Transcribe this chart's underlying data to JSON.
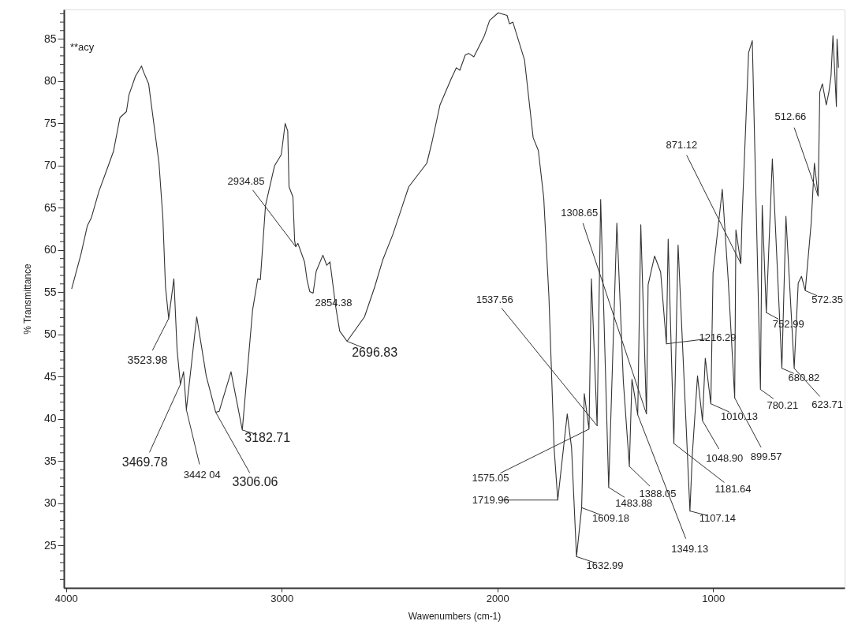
{
  "chart_data": {
    "type": "line",
    "xlabel": "Wawenumbers (cm-1)",
    "ylabel": "% Transmittance",
    "color": "#333333",
    "grid": false,
    "xlim": [
      4010,
      390
    ],
    "xticks": [
      4000,
      3000,
      2000,
      1000
    ],
    "ylim": [
      20,
      88.5
    ],
    "yticks": [
      {
        "value": 21,
        "label": null
      },
      {
        "value": 22,
        "label": null
      },
      {
        "value": 23,
        "label": null
      },
      {
        "value": 24,
        "label": null
      },
      25,
      {
        "value": 26,
        "label": null
      },
      {
        "value": 27,
        "label": null
      },
      {
        "value": 28,
        "label": null
      },
      {
        "value": 29,
        "label": null
      },
      30,
      {
        "value": 31,
        "label": null
      },
      {
        "value": 32,
        "label": null
      },
      {
        "value": 33,
        "label": null
      },
      {
        "value": 34,
        "label": null
      },
      35,
      {
        "value": 36,
        "label": null
      },
      {
        "value": 37,
        "label": null
      },
      {
        "value": 38,
        "label": null
      },
      {
        "value": 39,
        "label": null
      },
      40,
      {
        "value": 41,
        "label": null
      },
      {
        "value": 42,
        "label": null
      },
      {
        "value": 43,
        "label": null
      },
      {
        "value": 44,
        "label": null
      },
      45,
      {
        "value": 46,
        "label": null
      },
      {
        "value": 47,
        "label": null
      },
      {
        "value": 48,
        "label": null
      },
      {
        "value": 49,
        "label": null
      },
      50,
      {
        "value": 51,
        "label": null
      },
      {
        "value": 52,
        "label": null
      },
      {
        "value": 53,
        "label": null
      },
      {
        "value": 54,
        "label": null
      },
      55,
      {
        "value": 56,
        "label": null
      },
      {
        "value": 57,
        "label": null
      },
      {
        "value": 58,
        "label": null
      },
      {
        "value": 59,
        "label": null
      },
      60,
      {
        "value": 61,
        "label": null
      },
      {
        "value": 62,
        "label": null
      },
      {
        "value": 63,
        "label": null
      },
      {
        "value": 64,
        "label": null
      },
      65,
      {
        "value": 66,
        "label": null
      },
      {
        "value": 67,
        "label": null
      },
      {
        "value": 68,
        "label": null
      },
      {
        "value": 69,
        "label": null
      },
      70,
      {
        "value": 71,
        "label": null
      },
      {
        "value": 72,
        "label": null
      },
      {
        "value": 73,
        "label": null
      },
      {
        "value": 74,
        "label": null
      },
      75,
      {
        "value": 76,
        "label": null
      },
      {
        "value": 77,
        "label": null
      },
      {
        "value": 78,
        "label": null
      },
      {
        "value": 79,
        "label": null
      },
      80,
      {
        "value": 81,
        "label": null
      },
      {
        "value": 82,
        "label": null
      },
      {
        "value": 83,
        "label": null
      },
      {
        "value": 84,
        "label": null
      },
      85,
      {
        "value": 86,
        "label": null
      },
      {
        "value": 87,
        "label": null
      },
      {
        "value": 88,
        "label": null
      }
    ],
    "x": [
      3974,
      3931,
      3901,
      3883,
      3847,
      3811,
      3780,
      3750,
      3720,
      3708,
      3678,
      3650,
      3642,
      3617,
      3569,
      3551,
      3539,
      3523.98,
      3500,
      3485,
      3469.78,
      3455,
      3442.04,
      3394,
      3350,
      3306.06,
      3290,
      3235,
      3182.71,
      3135,
      3111,
      3099,
      3075,
      3033,
      3002,
      2984,
      2972,
      2966,
      2948,
      2940,
      2934.85,
      2925,
      2894,
      2882,
      2870,
      2854.38,
      2840,
      2809,
      2791,
      2776,
      2749,
      2731,
      2696.83,
      2616,
      2568,
      2532,
      2484,
      2411,
      2327,
      2303,
      2266,
      2214,
      2190,
      2174,
      2149,
      2133,
      2109,
      2060,
      2036,
      1996,
      1955,
      1944,
      1928,
      1874,
      1834,
      1810,
      1785,
      1761,
      1737,
      1719.96,
      1676,
      1656,
      1632.99,
      1609.18,
      1597,
      1575.05,
      1564,
      1537.56,
      1521,
      1483.88,
      1446,
      1416,
      1388.05,
      1376,
      1349.13,
      1335,
      1308.65,
      1301,
      1271,
      1243,
      1216.29,
      1208,
      1181.64,
      1162,
      1107.14,
      1096,
      1072,
      1048.9,
      1036,
      1010.13,
      1000,
      975,
      957,
      930,
      899.57,
      894,
      871.12,
      865,
      835,
      818,
      780.21,
      772,
      752.99,
      725,
      680.82,
      662,
      623.71,
      605,
      590,
      572.35,
      545,
      530,
      512.66,
      505,
      493,
      475,
      463,
      453,
      444,
      428,
      425,
      418
    ],
    "values": [
      55.4,
      59.5,
      62.9,
      63.8,
      67.0,
      69.5,
      71.7,
      75.7,
      76.4,
      78.4,
      80.6,
      81.8,
      81.2,
      79.7,
      70.3,
      63.8,
      55.7,
      51.9,
      56.6,
      48.2,
      44.1,
      45.6,
      41.1,
      52.1,
      45.1,
      40.8,
      40.9,
      45.6,
      38.7,
      52.9,
      56.6,
      56.5,
      65.3,
      70.0,
      71.3,
      75.0,
      74.1,
      67.5,
      66.3,
      61.1,
      60.4,
      60.8,
      58.6,
      56.4,
      55.1,
      54.9,
      57.5,
      59.4,
      58.2,
      58.6,
      53.2,
      50.4,
      49.2,
      52.1,
      55.7,
      58.8,
      61.9,
      67.5,
      70.3,
      72.8,
      77.2,
      80.3,
      81.6,
      81.3,
      83.1,
      83.3,
      82.9,
      85.4,
      87.2,
      88.1,
      87.8,
      86.8,
      87.0,
      82.5,
      73.3,
      71.8,
      66.2,
      54.5,
      36.6,
      30.4,
      40.6,
      36.6,
      23.7,
      29.5,
      43.0,
      38.8,
      56.6,
      39.2,
      66.0,
      31.9,
      63.2,
      44.5,
      34.4,
      44.7,
      40.5,
      63.0,
      40.6,
      55.9,
      59.3,
      57.4,
      48.9,
      61.3,
      37.1,
      60.6,
      29.1,
      35.8,
      45.1,
      39.8,
      47.2,
      41.8,
      57.3,
      63.1,
      67.2,
      56.6,
      42.5,
      62.4,
      58.4,
      64.1,
      83.4,
      84.8,
      43.5,
      65.3,
      52.6,
      70.8,
      46.0,
      64.0,
      46.0,
      56.1,
      56.9,
      55.2,
      63.2,
      70.3,
      66.4,
      78.7,
      79.7,
      77.2,
      78.7,
      80.6,
      85.4,
      77.0,
      85.0,
      81.6
    ],
    "annotations": [
      "**acy",
      {
        "text": "3523.98",
        "x": 3523.98,
        "y": 51.9
      },
      {
        "text": "3469.78",
        "x": 3469.78,
        "y": 44.1
      },
      {
        "text": "3442 04",
        "x": 3442.04,
        "y": 41.1
      },
      {
        "text": "3306.06",
        "x": 3306.06,
        "y": 40.8
      },
      {
        "text": "3182.71",
        "x": 3182.71,
        "y": 38.7
      },
      {
        "text": "2934.85",
        "x": 2934.85,
        "y": 60.4
      },
      {
        "text": "2854.38",
        "x": 2854.38,
        "y": 54.9
      },
      {
        "text": "2696.83",
        "x": 2696.83,
        "y": 49.2
      },
      {
        "text": "1719.96",
        "x": 1719.96,
        "y": 30.4
      },
      {
        "text": "1632.99",
        "x": 1632.99,
        "y": 23.7
      },
      {
        "text": "1609.18",
        "x": 1609.18,
        "y": 29.5
      },
      {
        "text": "1575.05",
        "x": 1575.05,
        "y": 38.8
      },
      {
        "text": "1537.56",
        "x": 1537.56,
        "y": 39.2
      },
      {
        "text": "1483.88",
        "x": 1483.88,
        "y": 31.9
      },
      {
        "text": "1388.05",
        "x": 1388.05,
        "y": 34.4
      },
      {
        "text": "1349.13",
        "x": 1349.13,
        "y": 40.5
      },
      {
        "text": "1308.65",
        "x": 1308.65,
        "y": 40.6
      },
      {
        "text": "1216.29",
        "x": 1216.29,
        "y": 48.9
      },
      {
        "text": "1181.64",
        "x": 1181.64,
        "y": 37.1
      },
      {
        "text": "1107.14",
        "x": 1107.14,
        "y": 29.1
      },
      {
        "text": "1048.90",
        "x": 1048.9,
        "y": 39.8
      },
      {
        "text": "1010.13",
        "x": 1010.13,
        "y": 41.8
      },
      {
        "text": "899.57",
        "x": 899.57,
        "y": 42.5
      },
      {
        "text": "871.12",
        "x": 871.12,
        "y": 58.4
      },
      {
        "text": "780.21",
        "x": 780.21,
        "y": 43.5
      },
      {
        "text": "752.99",
        "x": 752.99,
        "y": 52.6
      },
      {
        "text": "680.82",
        "x": 680.82,
        "y": 46.0
      },
      {
        "text": "623.71",
        "x": 623.71,
        "y": 46.0
      },
      {
        "text": "572.35",
        "x": 572.35,
        "y": 55.2
      },
      {
        "text": "512.66",
        "x": 512.66,
        "y": 66.4
      }
    ]
  }
}
